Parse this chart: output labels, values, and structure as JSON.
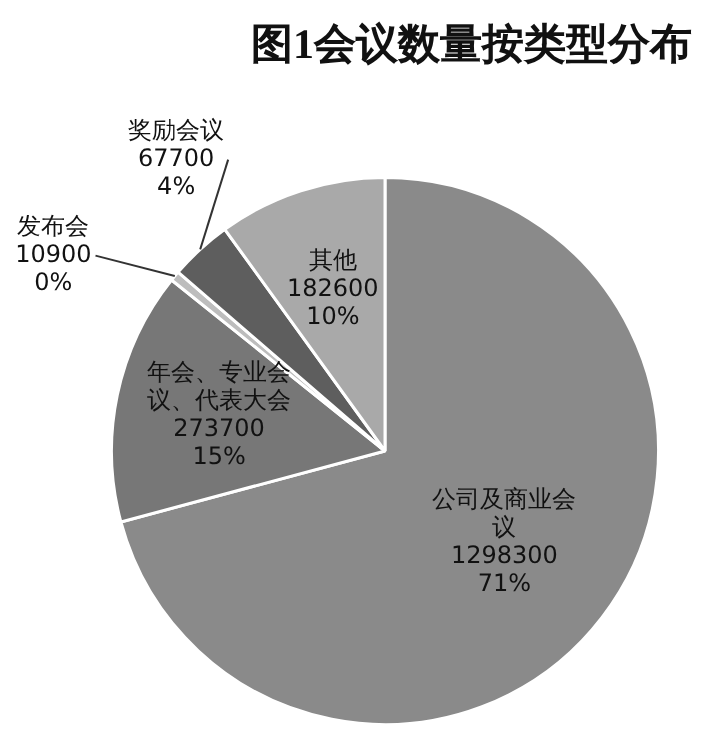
{
  "chart_data": {
    "type": "pie",
    "title": "图1会议数量按类型分布",
    "categories": [
      "公司及商业会议",
      "年会、专业会议、代表大会",
      "发布会",
      "奖励会议",
      "其他"
    ],
    "values": [
      1298300,
      273700,
      10900,
      67700,
      182600
    ],
    "value_labels": [
      "1298300\n71%",
      "273700\n15%",
      "10900\n0%",
      "67700\n4%",
      "182600\n10%"
    ],
    "colors": [
      "#8a8a8a",
      "#777777",
      "#bdbdbd",
      "#5e5e5e",
      "#a9a9a9"
    ],
    "legend": false
  }
}
